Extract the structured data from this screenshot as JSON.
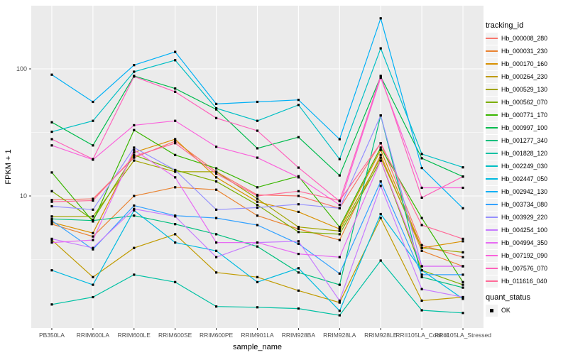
{
  "figure": {
    "background": "#FFFFFF",
    "panel_background": "#EBEBEB",
    "grid_color": "#FFFFFF",
    "tick_color": "#333333",
    "axis_text_color": "#4D4D4D"
  },
  "legend": {
    "tracking_title": "tracking_id",
    "quant_title": "quant_status",
    "quant_items": [
      {
        "label": "OK",
        "marker": "black-square"
      }
    ]
  },
  "axes": {
    "y_tick_labels": [
      "100",
      "10"
    ],
    "y_tick_values": [
      100,
      10
    ],
    "y_minor_values": [
      31.623,
      3.1623
    ]
  },
  "chart_data": {
    "type": "line",
    "title": "",
    "xlabel": "sample_name",
    "ylabel": "FPKM + 1",
    "y_scale": "log10",
    "ylim": [
      1,
      320
    ],
    "grid": true,
    "legend_position": "right",
    "point_color": "#000000",
    "categories": [
      "PB350LA",
      "RRIM600LA",
      "RRIM600LE",
      "RRIM600SE",
      "RRIM600PE",
      "RRIM901LA",
      "RRIM928BA",
      "RRIM928LA",
      "RRIM928LE",
      "RRII105LA_Control",
      "RRII105LA_Stressed"
    ],
    "series": [
      {
        "name": "Hb_000008_280",
        "color": "#F8766D",
        "values": [
          9.3,
          9.5,
          20,
          27,
          15.5,
          10.2,
          10,
          8.0,
          26,
          4.1,
          3.3
        ]
      },
      {
        "name": "Hb_000031_230",
        "color": "#EA8331",
        "values": [
          6.0,
          4.8,
          10,
          11.7,
          11.2,
          7.0,
          5.5,
          4.5,
          21,
          3.7,
          2.8
        ]
      },
      {
        "name": "Hb_000170_160",
        "color": "#D89000",
        "values": [
          6.2,
          5.1,
          22,
          28,
          14,
          9.0,
          7.5,
          5.5,
          23,
          3.9,
          4.4
        ]
      },
      {
        "name": "Hb_000264_230",
        "color": "#C09B00",
        "values": [
          4.5,
          2.3,
          3.9,
          5.0,
          2.5,
          2.3,
          1.8,
          1.45,
          6.7,
          1.5,
          1.6
        ]
      },
      {
        "name": "Hb_000529_130",
        "color": "#A3A500",
        "values": [
          6.9,
          6.9,
          19,
          15.5,
          15.5,
          9.5,
          5.7,
          5.3,
          20,
          3.9,
          3.6
        ]
      },
      {
        "name": "Hb_000562_070",
        "color": "#7CAE00",
        "values": [
          10.9,
          6.5,
          21,
          16,
          13,
          8.5,
          5.2,
          5.0,
          19,
          2.6,
          2.0
        ]
      },
      {
        "name": "Hb_000771_170",
        "color": "#39B600",
        "values": [
          15.3,
          6.3,
          33,
          21,
          16.5,
          11.7,
          14.3,
          5.7,
          24,
          6.7,
          2.1
        ]
      },
      {
        "name": "Hb_000997_100",
        "color": "#00BB4E",
        "values": [
          38,
          25,
          88,
          70,
          48,
          23.7,
          29,
          14.5,
          87,
          19.8,
          14.2
        ]
      },
      {
        "name": "Hb_001277_340",
        "color": "#00BF7D",
        "values": [
          6.6,
          6.4,
          7.0,
          6.0,
          5.0,
          4.0,
          2.5,
          2.0,
          43,
          2.3,
          1.9
        ]
      },
      {
        "name": "Hb_001828_120",
        "color": "#00C1A3",
        "values": [
          1.4,
          1.6,
          2.4,
          2.1,
          1.35,
          1.33,
          1.3,
          1.15,
          3.1,
          1.26,
          1.2
        ]
      },
      {
        "name": "Hb_002249_030",
        "color": "#00BFC4",
        "values": [
          32,
          39,
          95,
          117,
          49,
          39,
          52,
          19.5,
          145,
          21.4,
          16.8
        ]
      },
      {
        "name": "Hb_002447_050",
        "color": "#00BAE0",
        "values": [
          2.6,
          2.0,
          7.7,
          4.3,
          3.7,
          2.1,
          2.7,
          1.25,
          7.2,
          2.6,
          1.55
        ]
      },
      {
        "name": "Hb_002942_130",
        "color": "#00B0F6",
        "values": [
          90,
          55,
          107,
          136,
          53,
          55,
          57,
          28,
          250,
          16.6,
          8.0
        ]
      },
      {
        "name": "Hb_003734_080",
        "color": "#35A2FF",
        "values": [
          6.4,
          3.8,
          8.4,
          7.0,
          6.7,
          5.9,
          4.2,
          2.45,
          13,
          2.4,
          2.4
        ]
      },
      {
        "name": "Hb_003929_220",
        "color": "#9590FF",
        "values": [
          8.3,
          7.8,
          24,
          16,
          7.8,
          8.1,
          8.6,
          8.0,
          43,
          2.8,
          2.8
        ]
      },
      {
        "name": "Hb_004254_100",
        "color": "#C77CFF",
        "values": [
          4.6,
          3.9,
          7.9,
          6.9,
          3.3,
          4.3,
          4.4,
          1.5,
          12,
          1.85,
          1.6
        ]
      },
      {
        "name": "Hb_004994_350",
        "color": "#E76BF3",
        "values": [
          4.3,
          4.5,
          23,
          14,
          4.3,
          4.3,
          3.5,
          3.3,
          19,
          2.8,
          2.8
        ]
      },
      {
        "name": "Hb_007192_090",
        "color": "#FA62DB",
        "values": [
          25,
          19.3,
          36,
          39,
          24.4,
          20,
          14,
          8.5,
          85,
          11.6,
          11.6
        ]
      },
      {
        "name": "Hb_007576_070",
        "color": "#FF62BC",
        "values": [
          28,
          19.5,
          87,
          66,
          41,
          32.6,
          16.7,
          9.1,
          88,
          9.7,
          14.2
        ]
      },
      {
        "name": "Hb_011616_040",
        "color": "#FF6A98",
        "values": [
          9.0,
          9.2,
          20.5,
          26,
          15,
          10,
          10.9,
          9.2,
          26,
          5.9,
          4.6
        ]
      }
    ]
  }
}
